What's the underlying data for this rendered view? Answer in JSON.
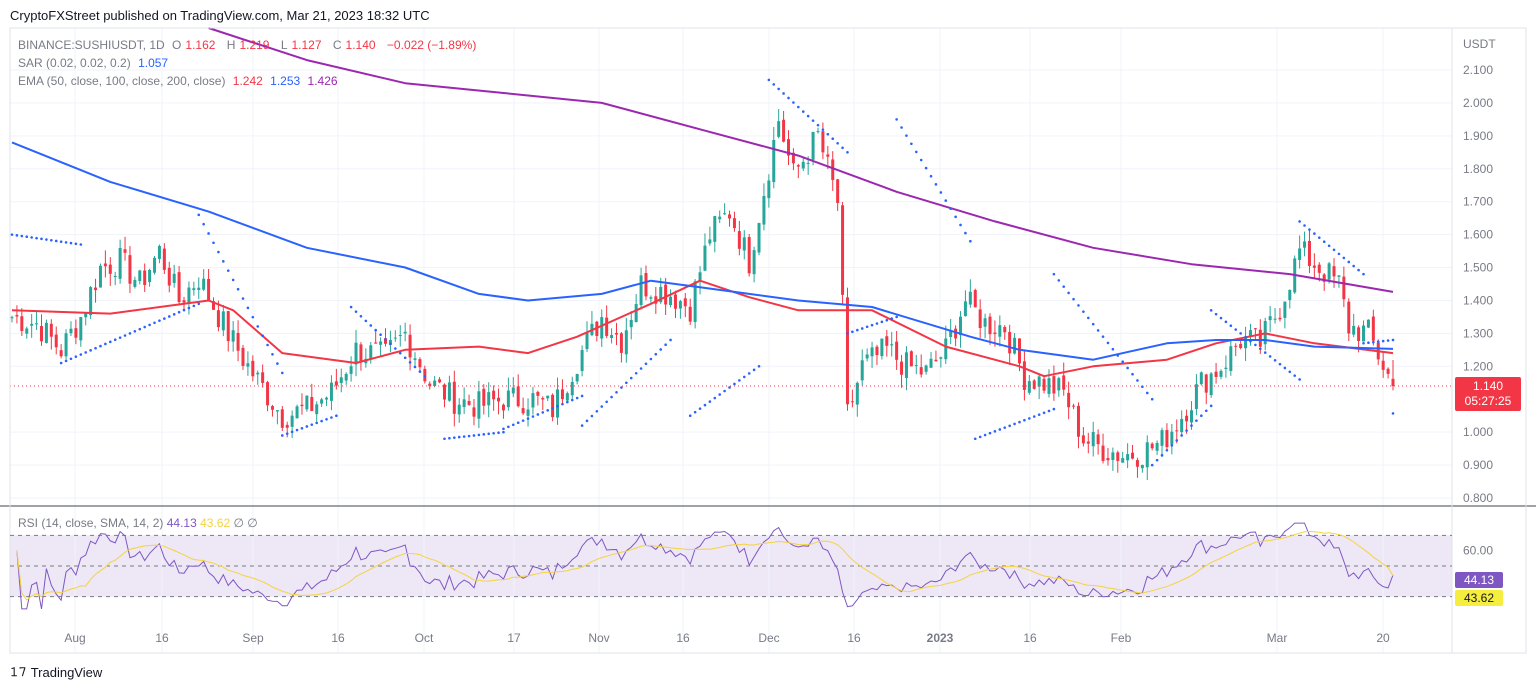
{
  "header": {
    "publish_line": "CryptoFXStreet published on TradingView.com, Mar 21, 2023 18:32 UTC"
  },
  "legend": {
    "symbol_line": {
      "symbol": "BINANCE:SUSHIUSDT, 1D",
      "o_label": "O",
      "o": "1.162",
      "h_label": "H",
      "h": "1.219",
      "l_label": "L",
      "l": "1.127",
      "c_label": "C",
      "c": "1.140",
      "change": "−0.022 (−1.89%)"
    },
    "sar_line": {
      "label": "SAR (0.02, 0.02, 0.2)",
      "value": "1.057"
    },
    "ema_line": {
      "label": "EMA (50, close, 100, close, 200, close)",
      "v50": "1.242",
      "v100": "1.253",
      "v200": "1.426"
    },
    "rsi_line": {
      "label": "RSI (14, close, SMA, 14, 2)",
      "rsi": "44.13",
      "sma": "43.62",
      "e1": "∅",
      "e2": "∅"
    }
  },
  "price_axis": {
    "currency": "USDT",
    "ticks": [
      "2.100",
      "2.000",
      "1.900",
      "1.800",
      "1.700",
      "1.600",
      "1.500",
      "1.400",
      "1.300",
      "1.200",
      "1.000",
      "0.900",
      "0.800"
    ]
  },
  "price_tag": {
    "price": "1.140",
    "countdown": "05:27:25"
  },
  "rsi_axis": {
    "ticks": [
      "60.00"
    ]
  },
  "rsi_tags": {
    "rsi": "44.13",
    "sma": "43.62"
  },
  "time_axis": {
    "labels": [
      "Aug",
      "16",
      "Sep",
      "16",
      "Oct",
      "17",
      "Nov",
      "16",
      "Dec",
      "16",
      "2023",
      "16",
      "Feb",
      "Mar",
      "20"
    ]
  },
  "footer": {
    "brand": "TradingView"
  },
  "colors": {
    "up": "#26a69a",
    "down": "#f23645",
    "ema50": "#f23645",
    "ema100": "#2962ff",
    "ema200": "#9c27b0",
    "sar": "#2962ff",
    "rsi": "#7e57c2",
    "rsi_sma": "#f5d33f",
    "rsi_band": "#ede7f6"
  },
  "chart_data": {
    "type": "line",
    "title": "BINANCE:SUSHIUSDT, 1D",
    "ylim": [
      0.8,
      2.15
    ],
    "series": [
      {
        "name": "EMA 50",
        "points": [
          [
            0,
            1.37
          ],
          [
            20,
            1.36
          ],
          [
            40,
            1.4
          ],
          [
            45,
            1.37
          ],
          [
            55,
            1.24
          ],
          [
            70,
            1.21
          ],
          [
            80,
            1.25
          ],
          [
            95,
            1.26
          ],
          [
            105,
            1.24
          ],
          [
            115,
            1.29
          ],
          [
            130,
            1.39
          ],
          [
            140,
            1.46
          ],
          [
            150,
            1.41
          ],
          [
            160,
            1.37
          ],
          [
            175,
            1.37
          ],
          [
            190,
            1.26
          ],
          [
            205,
            1.2
          ],
          [
            210,
            1.17
          ],
          [
            220,
            1.2
          ],
          [
            235,
            1.22
          ],
          [
            245,
            1.27
          ],
          [
            255,
            1.3
          ],
          [
            265,
            1.27
          ],
          [
            281,
            1.24
          ]
        ]
      },
      {
        "name": "EMA 100",
        "points": [
          [
            0,
            1.88
          ],
          [
            20,
            1.76
          ],
          [
            40,
            1.67
          ],
          [
            60,
            1.56
          ],
          [
            80,
            1.5
          ],
          [
            95,
            1.42
          ],
          [
            105,
            1.4
          ],
          [
            120,
            1.42
          ],
          [
            130,
            1.46
          ],
          [
            140,
            1.44
          ],
          [
            150,
            1.42
          ],
          [
            160,
            1.4
          ],
          [
            175,
            1.38
          ],
          [
            195,
            1.29
          ],
          [
            205,
            1.25
          ],
          [
            220,
            1.22
          ],
          [
            235,
            1.27
          ],
          [
            245,
            1.28
          ],
          [
            255,
            1.28
          ],
          [
            265,
            1.26
          ],
          [
            281,
            1.253
          ]
        ]
      },
      {
        "name": "EMA 200",
        "points": [
          [
            40,
            2.27
          ],
          [
            60,
            2.13
          ],
          [
            80,
            2.06
          ],
          [
            100,
            2.03
          ],
          [
            120,
            2.0
          ],
          [
            140,
            1.92
          ],
          [
            160,
            1.84
          ],
          [
            180,
            1.73
          ],
          [
            200,
            1.64
          ],
          [
            220,
            1.56
          ],
          [
            240,
            1.51
          ],
          [
            260,
            1.48
          ],
          [
            281,
            1.426
          ]
        ]
      },
      {
        "name": "SAR",
        "value": 1.057
      },
      {
        "name": "RSI",
        "value": 44.13
      },
      {
        "name": "RSI SMA",
        "value": 43.62
      }
    ],
    "candles_last": {
      "o": 1.162,
      "h": 1.219,
      "l": 1.127,
      "c": 1.14
    },
    "grid": true
  }
}
